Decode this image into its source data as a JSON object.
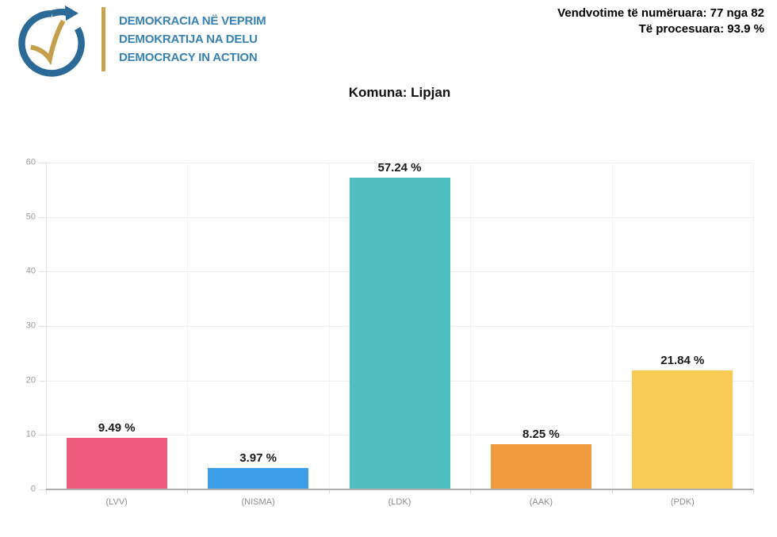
{
  "header": {
    "logo": {
      "icon_name": "clock-arrow-check-logo",
      "lines": [
        "DEMOKRACIA NË VEPRIM",
        "DEMOKRATIJA NA DELU",
        "DEMOCRACY IN ACTION"
      ],
      "text_color": "#3781B4",
      "arrow_color": "#2B6A97",
      "check_color": "#C5A04C",
      "divider_color": "#C9A44E"
    },
    "stats": {
      "counted_label": "Vendvotime të numëruara: 77 nga 82",
      "processed_label": "Të procesuara: 93.9 %"
    }
  },
  "page_title": "Komuna: Lipjan",
  "chart_data": {
    "type": "bar",
    "title": "Komuna: Lipjan",
    "categories": [
      "(LVV)",
      "(NISMA)",
      "(LDK)",
      "(AAK)",
      "(PDK)"
    ],
    "values": [
      9.49,
      3.97,
      57.24,
      8.25,
      21.84
    ],
    "value_labels": [
      "9.49 %",
      "3.97 %",
      "57.24 %",
      "8.25 %",
      "21.84 %"
    ],
    "bar_colors": [
      "#ED5C7E",
      "#3D9EE9",
      "#4FBFBF",
      "#F19B3F",
      "#F8CB54"
    ],
    "xlabel": "",
    "ylabel": "",
    "ylim": [
      0,
      60
    ],
    "yticks": [
      0,
      10,
      20,
      30,
      40,
      50,
      60
    ],
    "grid": true,
    "legend": false,
    "axis_tick_color": "#999999",
    "category_label_color": "#8C8C8C",
    "value_label_color": "#1B1B1B"
  }
}
